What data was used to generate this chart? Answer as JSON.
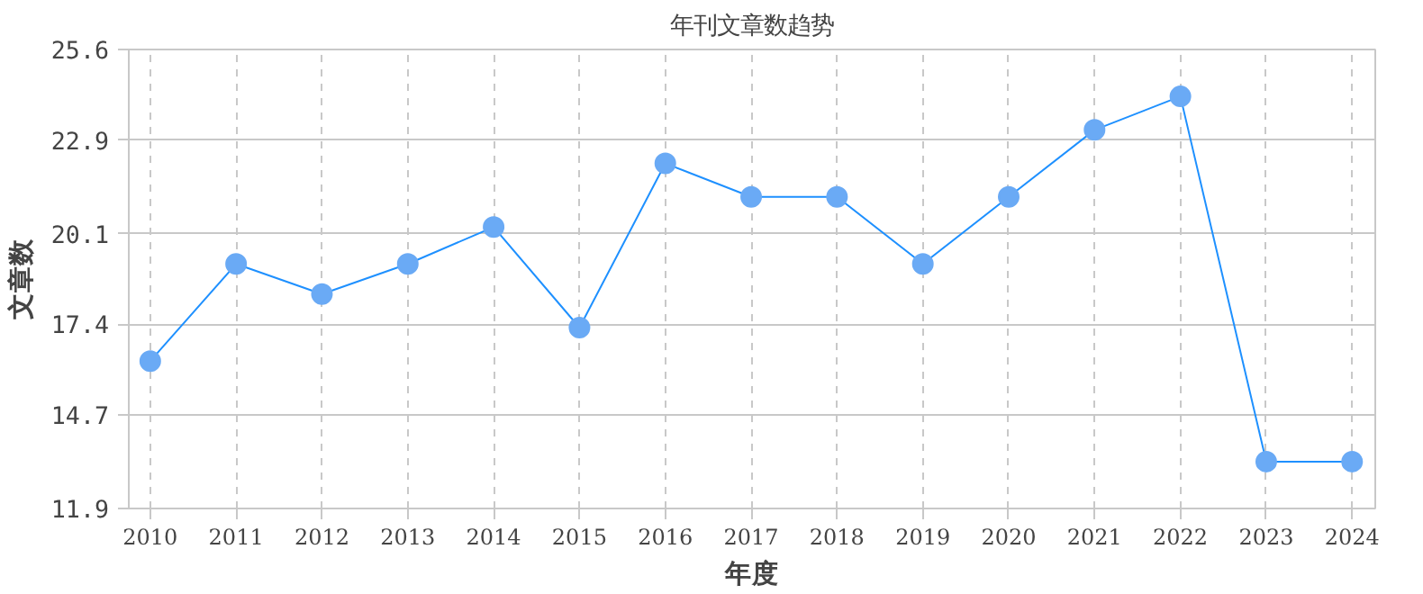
{
  "chart_data": {
    "type": "line",
    "title": "年刊文章数趋势",
    "xlabel": "年度",
    "ylabel": "文章数",
    "categories": [
      "2010",
      "2011",
      "2012",
      "2013",
      "2014",
      "2015",
      "2016",
      "2017",
      "2018",
      "2019",
      "2020",
      "2021",
      "2022",
      "2023",
      "2024"
    ],
    "series": [
      {
        "color": "#1e90ff",
        "values": [
          16.3,
          19.2,
          18.3,
          19.2,
          20.3,
          17.3,
          22.2,
          21.2,
          21.2,
          19.2,
          21.2,
          23.2,
          24.2,
          13.3,
          13.3
        ]
      }
    ],
    "ylim": [
      11.9,
      25.6
    ],
    "yticks": [
      11.9,
      14.7,
      17.4,
      20.1,
      22.9,
      25.6
    ],
    "grid": true,
    "marker": "circle",
    "line_style": "solid"
  }
}
